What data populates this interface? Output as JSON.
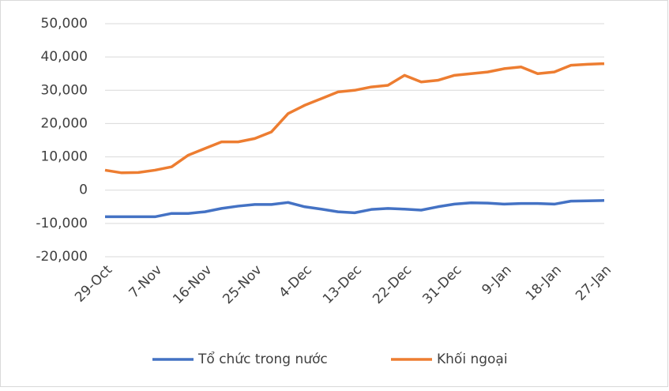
{
  "chart_data": {
    "type": "line",
    "categories": [
      "29-Oct",
      null,
      null,
      "7-Nov",
      null,
      null,
      "16-Nov",
      null,
      null,
      "25-Nov",
      null,
      null,
      "4-Dec",
      null,
      null,
      "13-Dec",
      null,
      null,
      "22-Dec",
      null,
      null,
      "31-Dec",
      null,
      null,
      "9-Jan",
      null,
      null,
      "18-Jan",
      null,
      null,
      "27-Jan"
    ],
    "series": [
      {
        "name": "Tổ chức trong nước",
        "color": "#4472c4",
        "values": [
          -8000,
          -8000,
          -8000,
          -8000,
          -7000,
          -7000,
          -6500,
          -5500,
          -4800,
          -4300,
          -4300,
          -3700,
          -5000,
          -5700,
          -6500,
          -6800,
          -5800,
          -5500,
          -5700,
          -6000,
          -5000,
          -4200,
          -3800,
          -3900,
          -4200,
          -4000,
          -4000,
          -4200,
          -3300,
          -3200,
          -3100
        ]
      },
      {
        "name": "Khối ngoại",
        "color": "#ed7d31",
        "values": [
          6000,
          5200,
          5300,
          6000,
          7000,
          10500,
          12500,
          14500,
          14500,
          15500,
          17500,
          23000,
          25500,
          27500,
          29500,
          30000,
          31000,
          31500,
          34500,
          32500,
          33000,
          34500,
          35000,
          35500,
          36500,
          37000,
          35000,
          35500,
          37500,
          37800,
          38000
        ]
      }
    ],
    "ylim": [
      -20000,
      50000
    ],
    "yticks": [
      {
        "value": -20000,
        "label": "-20,000"
      },
      {
        "value": -10000,
        "label": "-10,000"
      },
      0,
      {
        "value": 10000,
        "label": "10,000"
      },
      {
        "value": 20000,
        "label": "20,000"
      },
      {
        "value": 30000,
        "label": "30,000"
      },
      {
        "value": 40000,
        "label": "40,000"
      },
      {
        "value": 50000,
        "label": "50,000"
      }
    ],
    "grid": true,
    "legend": "bottom"
  }
}
